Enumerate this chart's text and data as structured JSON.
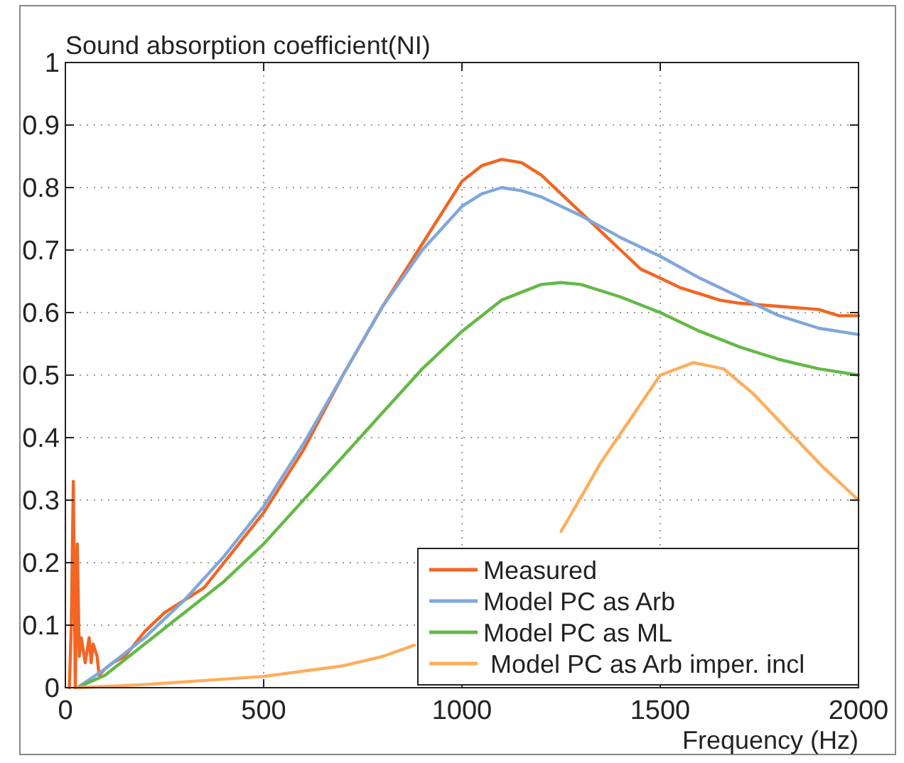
{
  "chart_data": {
    "type": "line",
    "title": "Sound absorption coefficient(NI)",
    "xlabel": "Frequency (Hz)",
    "xlim": [
      0,
      2000
    ],
    "xticks": [
      0,
      500,
      1000,
      1500,
      2000
    ],
    "ylim": [
      0,
      1
    ],
    "yticks": [
      0,
      0.1,
      0.2,
      0.3,
      0.4,
      0.5,
      0.6,
      0.7,
      0.8,
      0.9,
      1
    ],
    "grid": true,
    "legend": "bottom right",
    "line_style": "solid",
    "series": [
      {
        "name": "Measured",
        "color": "#f26522",
        "x": [
          10,
          15,
          20,
          25,
          30,
          35,
          40,
          50,
          60,
          65,
          70,
          80,
          85,
          100,
          120,
          150,
          200,
          250,
          300,
          350,
          400,
          500,
          600,
          700,
          800,
          900,
          950,
          1000,
          1050,
          1100,
          1150,
          1200,
          1250,
          1300,
          1350,
          1400,
          1450,
          1500,
          1550,
          1600,
          1650,
          1700,
          1800,
          1900,
          1950,
          2000
        ],
        "values": [
          0,
          0.1,
          0.33,
          0,
          0.23,
          0.05,
          0.08,
          0.04,
          0.08,
          0.04,
          0.07,
          0.05,
          0.02,
          0.03,
          0.04,
          0.05,
          0.09,
          0.12,
          0.14,
          0.16,
          0.2,
          0.28,
          0.38,
          0.5,
          0.61,
          0.71,
          0.76,
          0.81,
          0.835,
          0.845,
          0.84,
          0.82,
          0.79,
          0.76,
          0.73,
          0.7,
          0.67,
          0.655,
          0.64,
          0.63,
          0.62,
          0.615,
          0.61,
          0.605,
          0.595,
          0.595
        ]
      },
      {
        "name": "Model PC as Arb",
        "color": "#7fa7dc",
        "x": [
          30,
          100,
          200,
          300,
          400,
          500,
          600,
          700,
          800,
          900,
          1000,
          1050,
          1100,
          1150,
          1200,
          1300,
          1400,
          1500,
          1600,
          1700,
          1800,
          1900,
          2000
        ],
        "values": [
          0,
          0.03,
          0.08,
          0.14,
          0.21,
          0.29,
          0.39,
          0.5,
          0.61,
          0.7,
          0.77,
          0.79,
          0.8,
          0.795,
          0.785,
          0.755,
          0.72,
          0.69,
          0.655,
          0.625,
          0.595,
          0.575,
          0.565
        ]
      },
      {
        "name": "Model PC as ML",
        "color": "#63b946",
        "x": [
          30,
          100,
          200,
          300,
          400,
          500,
          600,
          700,
          800,
          900,
          1000,
          1100,
          1200,
          1250,
          1300,
          1400,
          1500,
          1600,
          1700,
          1800,
          1900,
          2000
        ],
        "values": [
          0,
          0.02,
          0.07,
          0.12,
          0.17,
          0.23,
          0.3,
          0.37,
          0.44,
          0.51,
          0.57,
          0.62,
          0.645,
          0.648,
          0.645,
          0.625,
          0.6,
          0.57,
          0.545,
          0.525,
          0.51,
          0.5
        ]
      },
      {
        "name": " Model PC as Arb imper. incl",
        "color": "#ffad5a",
        "x": [
          30,
          200,
          500,
          700,
          800,
          880,
          900,
          1250,
          1305,
          1350,
          1441,
          1500,
          1584,
          1660,
          1735,
          1907,
          2000
        ],
        "values": [
          0,
          0.005,
          0.018,
          0.035,
          0.05,
          0.068,
          null,
          0.25,
          0.31,
          0.36,
          0.445,
          0.5,
          0.52,
          0.51,
          0.47,
          0.355,
          0.3
        ]
      }
    ]
  }
}
